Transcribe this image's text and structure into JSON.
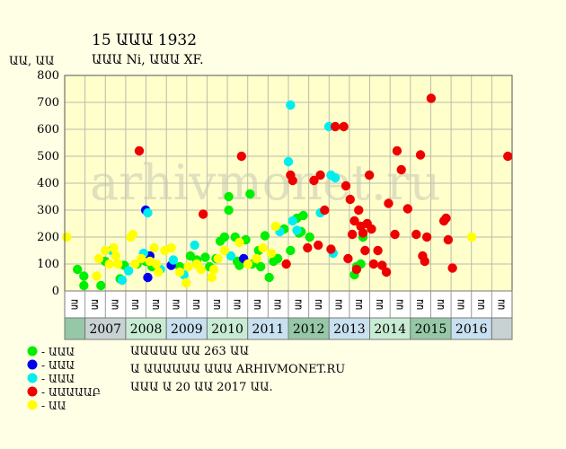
{
  "header": {
    "title": "15 ԱԱԱ 1932",
    "subtitle": "ԱԱԱ Ni, ԱԱԱ XF."
  },
  "watermark": "arhivmonet.ru",
  "colors": {
    "background": "#ffffe6",
    "plot_bg": "#ffffcc",
    "grid": "#bbbbaa",
    "band_light": "#c8ebd4",
    "band_dark": "#96c8a8",
    "band_blue": "#c8e0f0",
    "band_grey": "#c8d2d2"
  },
  "chart_data": {
    "type": "scatter",
    "title": "15 ԱԱԱ 1932",
    "subtitle": "ԱԱԱ Ni, ԱԱԱ XF.",
    "ylabel": "ԱԱ, ԱԱ",
    "ylim": [
      0,
      800
    ],
    "yticks": [
      0,
      100,
      200,
      300,
      400,
      500,
      600,
      700,
      800
    ],
    "xlim": [
      2006.5,
      2017.0
    ],
    "grid": true,
    "years": [
      "2007",
      "2008",
      "2009",
      "2010",
      "2011",
      "2012",
      "2013",
      "2014",
      "2015",
      "2016"
    ],
    "condition_labels": [
      "ԱԱ",
      "ԱԱ",
      "ԱԱ",
      "ԱԱ",
      "ԱԱ",
      "ԱԱ",
      "ԱԱ",
      "ԱԱ",
      "ԱԱ",
      "ԱԱ",
      "ԱԱ",
      "ԱԱ",
      "ԱԱ",
      "ԱԱ",
      "ԱԱ",
      "ԱԱ",
      "ԱԱ",
      "ԱԱ",
      "ԱԱ",
      "ԱԱ",
      "ԱԱ",
      "ԱԱ"
    ],
    "series": [
      {
        "name": "- ԱԱԱ",
        "color": "#00ee00",
        "points": [
          [
            2006.8,
            80
          ],
          [
            2006.95,
            55
          ],
          [
            2006.95,
            20
          ],
          [
            2007.35,
            20
          ],
          [
            2007.45,
            110
          ],
          [
            2007.8,
            45
          ],
          [
            2007.9,
            95
          ],
          [
            2008.2,
            100
          ],
          [
            2008.4,
            110
          ],
          [
            2008.55,
            90
          ],
          [
            2009.2,
            90
          ],
          [
            2009.45,
            130
          ],
          [
            2009.6,
            115
          ],
          [
            2009.8,
            125
          ],
          [
            2009.9,
            90
          ],
          [
            2010.05,
            120
          ],
          [
            2010.15,
            185
          ],
          [
            2010.25,
            200
          ],
          [
            2010.35,
            300
          ],
          [
            2010.35,
            350
          ],
          [
            2010.5,
            200
          ],
          [
            2010.55,
            110
          ],
          [
            2010.6,
            95
          ],
          [
            2010.75,
            190
          ],
          [
            2010.85,
            360
          ],
          [
            2010.9,
            100
          ],
          [
            2011.05,
            150
          ],
          [
            2011.1,
            90
          ],
          [
            2011.2,
            205
          ],
          [
            2011.3,
            50
          ],
          [
            2011.4,
            110
          ],
          [
            2011.5,
            120
          ],
          [
            2011.65,
            230
          ],
          [
            2011.8,
            150
          ],
          [
            2011.95,
            270
          ],
          [
            2012.0,
            215
          ],
          [
            2012.05,
            220
          ],
          [
            2012.1,
            280
          ],
          [
            2012.25,
            200
          ],
          [
            2013.3,
            60
          ],
          [
            2013.35,
            90
          ],
          [
            2013.45,
            100
          ],
          [
            2013.5,
            200
          ]
        ]
      },
      {
        "name": "- ԱԱԱ",
        "color": "#0000ee",
        "points": [
          [
            2008.4,
            300
          ],
          [
            2008.45,
            50
          ],
          [
            2008.5,
            130
          ],
          [
            2009.0,
            95
          ],
          [
            2010.7,
            120
          ]
        ]
      },
      {
        "name": "- ԱԱԱ",
        "color": "#00eeee",
        "points": [
          [
            2007.6,
            150
          ],
          [
            2007.85,
            40
          ],
          [
            2008.0,
            75
          ],
          [
            2008.35,
            140
          ],
          [
            2008.45,
            290
          ],
          [
            2008.75,
            80
          ],
          [
            2009.05,
            115
          ],
          [
            2009.3,
            60
          ],
          [
            2009.55,
            170
          ],
          [
            2010.4,
            130
          ],
          [
            2011.55,
            220
          ],
          [
            2011.75,
            480
          ],
          [
            2011.8,
            690
          ],
          [
            2011.85,
            260
          ],
          [
            2011.95,
            225
          ],
          [
            2012.5,
            290
          ],
          [
            2012.7,
            610
          ],
          [
            2012.75,
            430
          ],
          [
            2012.8,
            140
          ],
          [
            2012.85,
            420
          ]
        ]
      },
      {
        "name": "- ԱԱԱԱԱԲ",
        "color": "#ee0000",
        "points": [
          [
            2008.25,
            520
          ],
          [
            2009.75,
            285
          ],
          [
            2010.65,
            500
          ],
          [
            2011.7,
            100
          ],
          [
            2011.8,
            430
          ],
          [
            2011.85,
            410
          ],
          [
            2012.2,
            160
          ],
          [
            2012.35,
            410
          ],
          [
            2012.45,
            170
          ],
          [
            2012.5,
            430
          ],
          [
            2012.6,
            300
          ],
          [
            2012.75,
            155
          ],
          [
            2012.85,
            610
          ],
          [
            2013.05,
            610
          ],
          [
            2013.1,
            390
          ],
          [
            2013.15,
            120
          ],
          [
            2013.2,
            340
          ],
          [
            2013.25,
            210
          ],
          [
            2013.3,
            260
          ],
          [
            2013.35,
            80
          ],
          [
            2013.4,
            300
          ],
          [
            2013.45,
            240
          ],
          [
            2013.5,
            215
          ],
          [
            2013.55,
            150
          ],
          [
            2013.6,
            250
          ],
          [
            2013.65,
            430
          ],
          [
            2013.7,
            230
          ],
          [
            2013.75,
            100
          ],
          [
            2013.85,
            150
          ],
          [
            2013.95,
            95
          ],
          [
            2014.05,
            70
          ],
          [
            2014.1,
            325
          ],
          [
            2014.25,
            210
          ],
          [
            2014.3,
            520
          ],
          [
            2014.4,
            450
          ],
          [
            2014.55,
            305
          ],
          [
            2014.75,
            210
          ],
          [
            2014.85,
            505
          ],
          [
            2014.9,
            130
          ],
          [
            2014.95,
            110
          ],
          [
            2015.0,
            200
          ],
          [
            2015.1,
            715
          ],
          [
            2015.4,
            260
          ],
          [
            2015.45,
            270
          ],
          [
            2015.5,
            190
          ],
          [
            2015.6,
            85
          ],
          [
            2016.9,
            500
          ]
        ]
      },
      {
        "name": "- ԱԱ",
        "color": "#ffff00",
        "points": [
          [
            2006.55,
            200
          ],
          [
            2007.25,
            55
          ],
          [
            2007.3,
            120
          ],
          [
            2007.45,
            150
          ],
          [
            2007.55,
            100
          ],
          [
            2007.65,
            160
          ],
          [
            2007.7,
            130
          ],
          [
            2007.75,
            100
          ],
          [
            2008.05,
            200
          ],
          [
            2008.1,
            210
          ],
          [
            2008.15,
            100
          ],
          [
            2008.3,
            120
          ],
          [
            2008.5,
            110
          ],
          [
            2008.6,
            160
          ],
          [
            2008.65,
            100
          ],
          [
            2008.7,
            70
          ],
          [
            2008.85,
            150
          ],
          [
            2009.0,
            160
          ],
          [
            2009.2,
            70
          ],
          [
            2009.35,
            30
          ],
          [
            2009.4,
            90
          ],
          [
            2009.6,
            100
          ],
          [
            2009.7,
            80
          ],
          [
            2009.95,
            50
          ],
          [
            2010.0,
            80
          ],
          [
            2010.1,
            120
          ],
          [
            2010.25,
            150
          ],
          [
            2010.6,
            180
          ],
          [
            2010.8,
            100
          ],
          [
            2011.0,
            120
          ],
          [
            2011.15,
            160
          ],
          [
            2011.35,
            140
          ],
          [
            2011.45,
            240
          ],
          [
            2016.05,
            200
          ]
        ]
      }
    ]
  },
  "legend": [
    {
      "label": "- ԱԱԱ",
      "color": "#00ee00"
    },
    {
      "label": "- ԱԱԱ",
      "color": "#0000ee"
    },
    {
      "label": "- ԱԱԱ",
      "color": "#00eeee"
    },
    {
      "label": "- ԱԱԱԱԱԲ",
      "color": "#ee0000"
    },
    {
      "label": "- ԱԱ",
      "color": "#ffff00"
    }
  ],
  "notes": [
    "ԱԱԱԱԱ ԱԱ 263 ԱԱ",
    "Ա ԱԱԱԱԱԱ ԱԱԱ ARHIVMONET.RU",
    "ԱԱԱ Ա 20 ԱԱ 2017 ԱԱ."
  ]
}
